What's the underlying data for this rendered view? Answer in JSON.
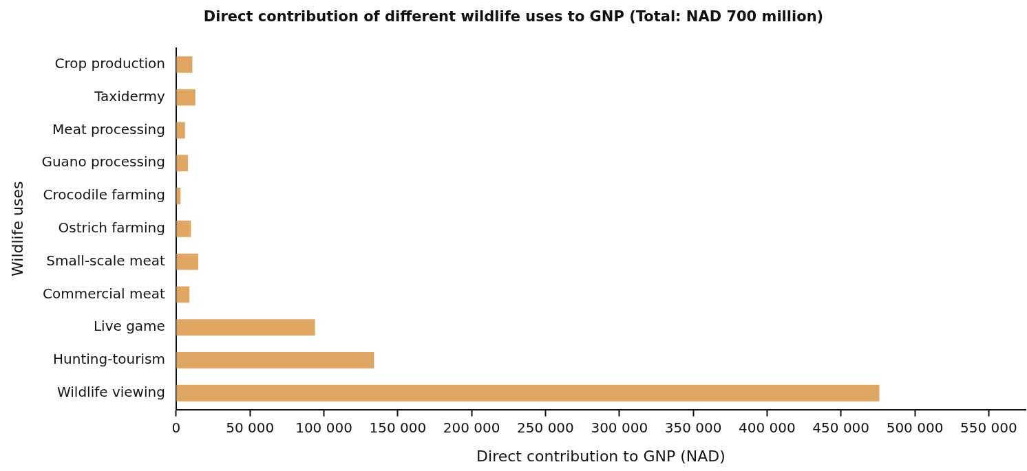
{
  "chart_data": {
    "type": "bar",
    "orientation": "horizontal",
    "title": "Direct contribution of different wildlife uses to GNP (Total: NAD 700 million)",
    "xlabel": "Direct contribution to GNP (NAD)",
    "ylabel": "Wildlife uses",
    "categories": [
      "Crop production",
      "Taxidermy",
      "Meat processing",
      "Guano processing",
      "Crocodile farming",
      "Ostrich farming",
      "Small-scale meat",
      "Commercial meat",
      "Live game",
      "Hunting-tourism",
      "Wildlife viewing"
    ],
    "values": [
      11000,
      13000,
      6000,
      8000,
      3000,
      10000,
      15000,
      9000,
      94000,
      134000,
      476000
    ],
    "color": "#dfa662",
    "xlim": [
      0,
      575000
    ],
    "xticks": [
      {
        "value": 0,
        "label": "0"
      },
      {
        "value": 50000,
        "label": "50 000"
      },
      {
        "value": 100000,
        "label": "100 000"
      },
      {
        "value": 150000,
        "label": "150 000"
      },
      {
        "value": 200000,
        "label": "200 000"
      },
      {
        "value": 250000,
        "label": "250 000"
      },
      {
        "value": 300000,
        "label": "300 000"
      },
      {
        "value": 350000,
        "label": "350 000"
      },
      {
        "value": 400000,
        "label": "400 000"
      },
      {
        "value": 450000,
        "label": "450 000"
      },
      {
        "value": 500000,
        "label": "500 000"
      },
      {
        "value": 550000,
        "label": "550 000"
      }
    ],
    "grid": false,
    "legend": false
  }
}
